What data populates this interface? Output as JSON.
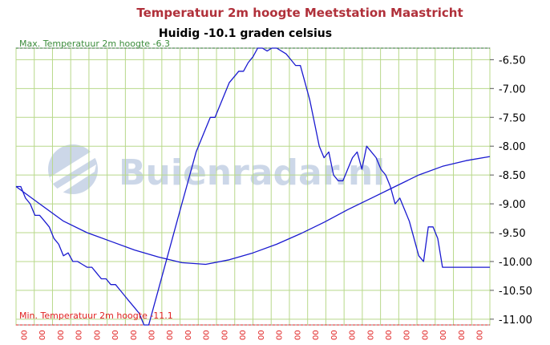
{
  "chart_data": {
    "type": "line",
    "title": "Temperatuur 2m hoogte Meetstation Maastricht",
    "subtitle": "Huidig -10.1 graden celsius",
    "ylim": [
      -11.1,
      -6.3
    ],
    "y_ticks": [
      "-6.50",
      "-7.00",
      "-7.50",
      "-8.00",
      "-8.50",
      "-9.00",
      "-9.50",
      "-10.00",
      "-10.50",
      "-11.00"
    ],
    "y_tick_values": [
      -6.5,
      -7.0,
      -7.5,
      -8.0,
      -8.5,
      -9.0,
      -9.5,
      -10.0,
      -10.5,
      -11.0
    ],
    "x_tick_labels": [
      "00",
      "00",
      "00",
      "00",
      "00",
      "00",
      "00",
      "00",
      "00",
      "00",
      "00",
      "00",
      "00",
      "00",
      "00",
      "00",
      "00",
      "00",
      "00",
      "00",
      "00",
      "00",
      "00",
      "00",
      "00",
      "00"
    ],
    "xlim": [
      0,
      100
    ],
    "grid": true,
    "max_label": "Max. Temperatuur 2m hoogte -6.3",
    "min_label": "Min. Temperatuur 2m hoogte -11.1",
    "max_value": -6.3,
    "min_value": -11.1,
    "watermark": "Buienradar.nl",
    "series": [
      {
        "values_x": [
          0,
          1,
          2,
          3,
          4,
          5,
          6,
          7,
          8,
          9,
          10,
          11,
          12,
          13,
          14,
          15,
          16,
          17,
          18,
          19,
          20,
          21,
          22,
          23,
          24,
          25,
          26,
          27,
          28,
          29,
          30,
          31,
          32,
          33,
          34,
          35,
          36,
          37,
          38,
          39,
          40,
          41,
          42,
          43,
          44,
          45,
          46,
          47,
          48,
          49,
          50,
          51,
          52,
          53,
          54,
          55,
          56,
          57,
          58,
          59,
          60,
          61,
          62,
          63,
          64,
          65,
          66,
          67,
          68,
          69,
          70,
          71,
          72,
          73,
          74,
          75,
          76,
          77,
          78,
          79,
          80,
          81,
          82,
          83,
          84,
          85,
          86,
          87,
          88,
          89,
          90,
          91,
          92,
          93,
          94,
          95,
          96,
          97,
          98,
          99,
          100
        ],
        "values_y": [
          -8.7,
          -8.7,
          -8.9,
          -9.0,
          -9.2,
          -9.2,
          -9.3,
          -9.4,
          -9.6,
          -9.7,
          -9.9,
          -9.85,
          -10.0,
          -10.0,
          -10.05,
          -10.1,
          -10.1,
          -10.2,
          -10.3,
          -10.3,
          -10.4,
          -10.4,
          -10.5,
          -10.6,
          -10.7,
          -10.8,
          -10.9,
          -11.1,
          -11.1,
          -10.8,
          -10.5,
          -10.2,
          -9.9,
          -9.6,
          -9.3,
          -9.0,
          -8.7,
          -8.4,
          -8.1,
          -7.9,
          -7.7,
          -7.5,
          -7.5,
          -7.3,
          -7.1,
          -6.9,
          -6.8,
          -6.7,
          -6.7,
          -6.55,
          -6.45,
          -6.3,
          -6.3,
          -6.35,
          -6.3,
          -6.3,
          -6.35,
          -6.4,
          -6.5,
          -6.6,
          -6.6,
          -6.9,
          -7.2,
          -7.6,
          -8.0,
          -8.2,
          -8.1,
          -8.5,
          -8.6,
          -8.6,
          -8.4,
          -8.2,
          -8.1,
          -8.4,
          -8.0,
          -8.1,
          -8.2,
          -8.4,
          -8.5,
          -8.7,
          -9.0,
          -8.9,
          -9.1,
          -9.3,
          -9.6,
          -9.9,
          -10.0,
          -9.4,
          -9.4,
          -9.6,
          -10.1,
          -10.1,
          -10.1,
          -10.1,
          -10.1,
          -10.1,
          -10.1,
          -10.1,
          -10.1,
          -10.1,
          -10.1
        ]
      },
      {
        "values_x": [
          0,
          5,
          10,
          15,
          20,
          25,
          30,
          35,
          40,
          45,
          50,
          55,
          60,
          65,
          70,
          75,
          80,
          85,
          90,
          95,
          100
        ],
        "values_y": [
          -8.7,
          -9.0,
          -9.3,
          -9.5,
          -9.65,
          -9.8,
          -9.92,
          -10.02,
          -10.05,
          -9.97,
          -9.85,
          -9.7,
          -9.52,
          -9.32,
          -9.1,
          -8.9,
          -8.7,
          -8.5,
          -8.35,
          -8.25,
          -8.18
        ]
      }
    ]
  }
}
